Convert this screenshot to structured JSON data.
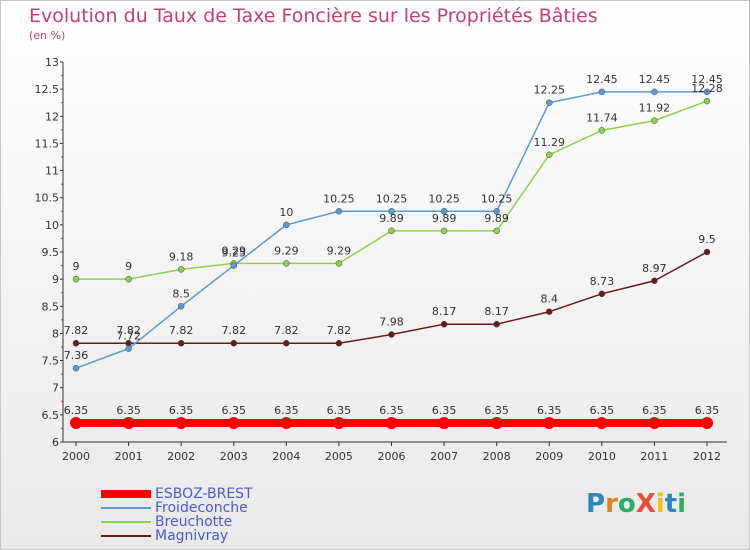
{
  "title": "Evolution du Taux de Taxe Foncière sur les Propriétés Bâties",
  "subtitle": "(en %)",
  "logo": {
    "text": "ProXiti",
    "letters": [
      "P",
      "r",
      "o",
      "X",
      "i",
      "t",
      "i"
    ],
    "colors": [
      "#2e86c1",
      "#e67e22",
      "#27ae60",
      "#e74c3c",
      "#f1c40f",
      "#2e86c1",
      "#27ae60"
    ]
  },
  "chart_data": {
    "type": "line",
    "x": [
      "2000",
      "2001",
      "2002",
      "2003",
      "2004",
      "2005",
      "2006",
      "2007",
      "2008",
      "2009",
      "2010",
      "2011",
      "2012"
    ],
    "ylim": [
      6,
      13
    ],
    "yticks": [
      "6",
      "6.5",
      "7",
      "7.5",
      "8",
      "8.5",
      "9",
      "9.5",
      "10",
      "10.5",
      "11",
      "11.5",
      "12",
      "12.5",
      "13"
    ],
    "grid": false,
    "legend_position": "bottom-left",
    "series": [
      {
        "name": "ESBOZ-BREST",
        "color": "#ff0000",
        "values": [
          6.35,
          6.35,
          6.35,
          6.35,
          6.35,
          6.35,
          6.35,
          6.35,
          6.35,
          6.35,
          6.35,
          6.35,
          6.35
        ],
        "labels": [
          "6.35",
          "6.35",
          "6.35",
          "6.35",
          "6.35",
          "6.35",
          "6.35",
          "6.35",
          "6.35",
          "6.35",
          "6.35",
          "6.35",
          "6.35"
        ]
      },
      {
        "name": "Froideconche",
        "color": "#5b9bd5",
        "values": [
          7.36,
          7.72,
          8.5,
          9.25,
          10,
          10.25,
          10.25,
          10.25,
          10.25,
          12.25,
          12.45,
          12.45,
          12.45
        ],
        "labels": [
          "7.36",
          "7.72",
          "8.5",
          "9.25",
          "10",
          "10.25",
          "10.25",
          "10.25",
          "10.25",
          "12.25",
          "12.45",
          "12.45",
          "12.45"
        ]
      },
      {
        "name": "Breuchotte",
        "color": "#8ed14a",
        "values": [
          9,
          9,
          9.18,
          9.29,
          9.29,
          9.29,
          9.89,
          9.89,
          9.89,
          11.29,
          11.74,
          11.92,
          12.28
        ],
        "labels": [
          "9",
          "9",
          "9.18",
          "9.29",
          "9.29",
          "9.29",
          "9.89",
          "9.89",
          "9.89",
          "11.29",
          "11.74",
          "11.92",
          "12.28"
        ]
      },
      {
        "name": "Magnivray",
        "color": "#6b1a1a",
        "values": [
          7.82,
          7.82,
          7.82,
          7.82,
          7.82,
          7.82,
          7.98,
          8.17,
          8.17,
          8.4,
          8.73,
          8.97,
          9.5
        ],
        "labels": [
          "7.82",
          "7.82",
          "7.82",
          "7.82",
          "7.82",
          "7.82",
          "7.98",
          "8.17",
          "8.17",
          "8.4",
          "8.73",
          "8.97",
          "9.5"
        ]
      }
    ]
  }
}
